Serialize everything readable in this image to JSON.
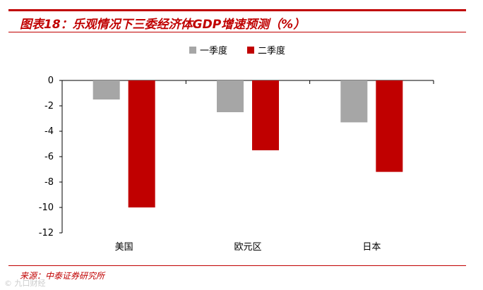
{
  "header": {
    "title": "图表18：乐观情况下三委经济体GDP增速预测（%）"
  },
  "footer": {
    "source": "来源：中泰证券研究所",
    "watermark": "© 九口财经"
  },
  "chart_data": {
    "type": "bar",
    "title": "图表18：乐观情况下三委经济体GDP增速预测（%）",
    "categories": [
      "美国",
      "欧元区",
      "日本"
    ],
    "series": [
      {
        "name": "一季度",
        "color": "#a6a6a6",
        "values": [
          -1.5,
          -2.5,
          -3.3
        ]
      },
      {
        "name": "二季度",
        "color": "#c00000",
        "values": [
          -10,
          -5.5,
          -7.2
        ]
      }
    ],
    "yticks": [
      "0",
      "-2",
      "-4",
      "-6",
      "-8",
      "-10",
      "-12"
    ],
    "ylim": [
      -12,
      0
    ],
    "xlabel": "",
    "ylabel": "",
    "legend": "top-center",
    "grid": false
  }
}
